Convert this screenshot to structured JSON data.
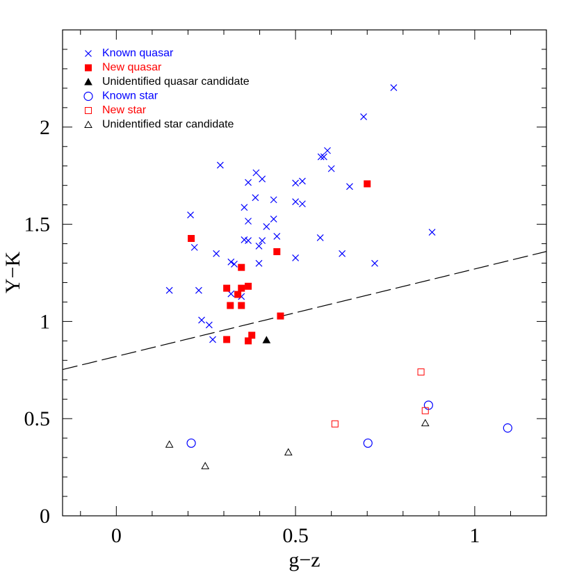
{
  "chart_data": {
    "type": "scatter",
    "xlabel": "g−z",
    "ylabel": "Y−K",
    "xlim": [
      -0.15,
      1.2
    ],
    "ylim": [
      0,
      2.5
    ],
    "xticks": [
      0,
      0.5,
      1
    ],
    "yticks": [
      0,
      0.5,
      1,
      1.5,
      2
    ],
    "x_minor_ticks": [
      -0.1,
      0.1,
      0.2,
      0.3,
      0.4,
      0.6,
      0.7,
      0.8,
      0.9,
      1.1
    ],
    "y_minor_ticks": [
      0.1,
      0.2,
      0.3,
      0.4,
      0.6,
      0.7,
      0.8,
      0.9,
      1.1,
      1.2,
      1.3,
      1.4,
      1.6,
      1.7,
      1.8,
      1.9,
      2.1,
      2.2,
      2.3,
      2.4
    ],
    "legend_position": "upper-left",
    "reference_line": {
      "x": [
        -0.15,
        1.2
      ],
      "y": [
        0.7525,
        1.36
      ],
      "color": "#000000",
      "dash": "dashed"
    },
    "series": [
      {
        "name": "Known quasar",
        "color": "#0000ff",
        "marker": "x",
        "x": [
          0.774,
          0.69,
          0.29,
          0.589,
          0.571,
          0.579,
          0.6,
          0.39,
          0.407,
          0.368,
          0.519,
          0.5,
          0.651,
          0.388,
          0.439,
          0.5,
          0.519,
          0.357,
          0.207,
          0.368,
          0.439,
          0.419,
          0.881,
          0.448,
          0.357,
          0.368,
          0.407,
          0.569,
          0.398,
          0.218,
          0.279,
          0.63,
          0.32,
          0.329,
          0.398,
          0.5,
          0.721,
          0.148,
          0.23,
          0.32,
          0.349,
          0.238,
          0.259,
          0.269
        ],
        "y": [
          2.203,
          2.053,
          1.804,
          1.879,
          1.847,
          1.847,
          1.786,
          1.765,
          1.733,
          1.715,
          1.722,
          1.712,
          1.694,
          1.637,
          1.626,
          1.616,
          1.605,
          1.587,
          1.548,
          1.516,
          1.527,
          1.488,
          1.459,
          1.438,
          1.42,
          1.416,
          1.416,
          1.431,
          1.388,
          1.381,
          1.349,
          1.349,
          1.306,
          1.295,
          1.299,
          1.327,
          1.299,
          1.16,
          1.16,
          1.142,
          1.128,
          1.007,
          0.982,
          0.907
        ]
      },
      {
        "name": "New quasar",
        "color": "#ff0000",
        "marker": "square-filled",
        "x": [
          0.7,
          0.209,
          0.448,
          0.349,
          0.308,
          0.349,
          0.368,
          0.339,
          0.318,
          0.349,
          0.458,
          0.308,
          0.378,
          0.368
        ],
        "y": [
          1.708,
          1.427,
          1.359,
          1.278,
          1.171,
          1.171,
          1.181,
          1.139,
          1.082,
          1.082,
          1.028,
          0.907,
          0.929,
          0.9
        ]
      },
      {
        "name": "Unidentified quasar candidate",
        "color": "#000000",
        "marker": "triangle-filled",
        "x": [
          0.419
        ],
        "y": [
          0.904
        ]
      },
      {
        "name": "Known star",
        "color": "#0000ff",
        "marker": "circle",
        "x": [
          0.209,
          0.702,
          0.871,
          1.092
        ],
        "y": [
          0.374,
          0.374,
          0.569,
          0.452
        ]
      },
      {
        "name": "New star",
        "color": "#ff0000",
        "marker": "square",
        "x": [
          0.61,
          0.85,
          0.862
        ],
        "y": [
          0.473,
          0.74,
          0.541
        ]
      },
      {
        "name": "Unidentified star candidate",
        "color": "#000000",
        "marker": "triangle",
        "x": [
          0.148,
          0.248,
          0.48,
          0.862
        ],
        "y": [
          0.367,
          0.256,
          0.327,
          0.477
        ]
      }
    ]
  }
}
